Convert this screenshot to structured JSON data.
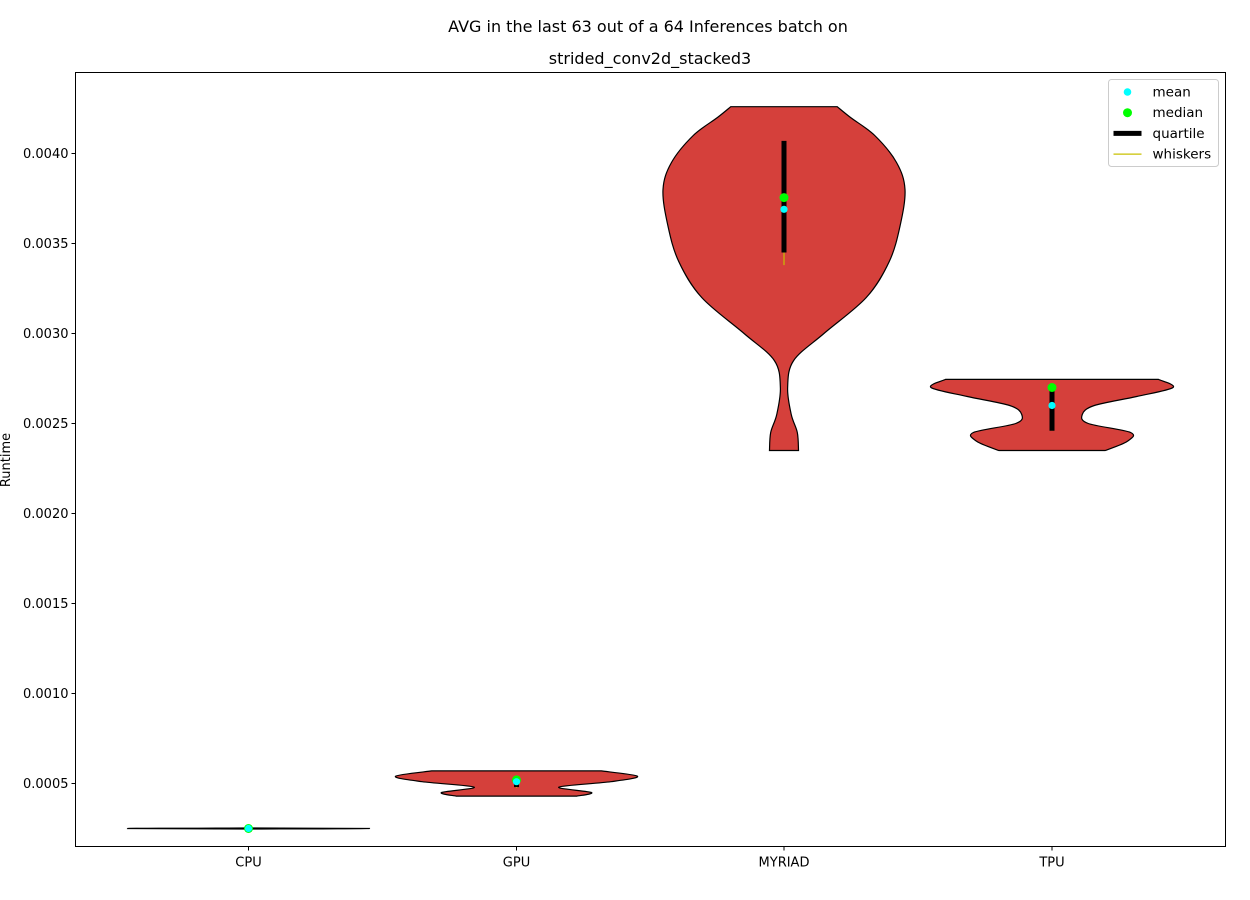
{
  "chart_data": {
    "type": "violin",
    "title_line1": "AVG in the last 63 out of a 64 Inferences batch on",
    "title_line2": "strided_conv2d_stacked3",
    "xlabel": "",
    "ylabel": "Runtime",
    "ylim": [
      0.00015,
      0.00445
    ],
    "yticks": [
      "0.0005",
      "0.0010",
      "0.0015",
      "0.0020",
      "0.0025",
      "0.0030",
      "0.0035",
      "0.0040"
    ],
    "categories": [
      "CPU",
      "GPU",
      "MYRIAD",
      "TPU"
    ],
    "violins": [
      {
        "category": "CPU",
        "min": 0.000247,
        "max": 0.000253,
        "profile": [
          [
            0.000247,
            0.02
          ],
          [
            0.00025,
            1.0
          ],
          [
            0.000253,
            0.02
          ]
        ],
        "mean": 0.00025,
        "median": 0.00025,
        "q1": 0.000249,
        "q3": 0.000251,
        "whisker_low": 0.000248,
        "whisker_high": 0.000252
      },
      {
        "category": "GPU",
        "min": 0.00043,
        "max": 0.00057,
        "profile": [
          [
            0.00043,
            0.5
          ],
          [
            0.00045,
            0.62
          ],
          [
            0.00048,
            0.35
          ],
          [
            0.00051,
            0.78
          ],
          [
            0.00054,
            1.0
          ],
          [
            0.00057,
            0.7
          ]
        ],
        "mean": 0.00051,
        "median": 0.00052,
        "q1": 0.00048,
        "q3": 0.00053,
        "whisker_low": 0.000475,
        "whisker_high": 0.000535
      },
      {
        "category": "MYRIAD",
        "min": 0.00235,
        "max": 0.00426,
        "profile": [
          [
            0.00235,
            0.12
          ],
          [
            0.00245,
            0.11
          ],
          [
            0.00255,
            0.06
          ],
          [
            0.0027,
            0.03
          ],
          [
            0.00285,
            0.08
          ],
          [
            0.003,
            0.33
          ],
          [
            0.0032,
            0.68
          ],
          [
            0.0034,
            0.87
          ],
          [
            0.0036,
            0.96
          ],
          [
            0.0038,
            1.0
          ],
          [
            0.00395,
            0.93
          ],
          [
            0.0041,
            0.75
          ],
          [
            0.0042,
            0.55
          ],
          [
            0.00426,
            0.44
          ]
        ],
        "mean": 0.00369,
        "median": 0.003755,
        "q1": 0.00345,
        "q3": 0.00407,
        "whisker_low": 0.00338,
        "whisker_high": 0.00407
      },
      {
        "category": "TPU",
        "min": 0.00235,
        "max": 0.002745,
        "profile": [
          [
            0.00235,
            0.44
          ],
          [
            0.0024,
            0.62
          ],
          [
            0.00245,
            0.65
          ],
          [
            0.0025,
            0.3
          ],
          [
            0.00255,
            0.25
          ],
          [
            0.0026,
            0.35
          ],
          [
            0.00265,
            0.7
          ],
          [
            0.0027,
            1.0
          ],
          [
            0.002745,
            0.88
          ]
        ],
        "mean": 0.0026,
        "median": 0.0027,
        "q1": 0.00246,
        "q3": 0.00271,
        "whisker_low": 0.00246,
        "whisker_high": 0.00271
      }
    ],
    "legend": {
      "placement": "upper right",
      "entries": [
        {
          "label": "mean",
          "marker": "dot",
          "color": "#00ffff"
        },
        {
          "label": "median",
          "marker": "dot",
          "color": "#00ff00"
        },
        {
          "label": "quartile",
          "marker": "thick-line",
          "color": "#000000"
        },
        {
          "label": "whiskers",
          "marker": "line",
          "color": "#c8c000"
        }
      ]
    },
    "colors": {
      "violin_fill": "#d5403b",
      "violin_edge": "#000000",
      "mean": "#00ffff",
      "median": "#00ff00",
      "quartile": "#000000",
      "whiskers": "#c8c000"
    }
  }
}
